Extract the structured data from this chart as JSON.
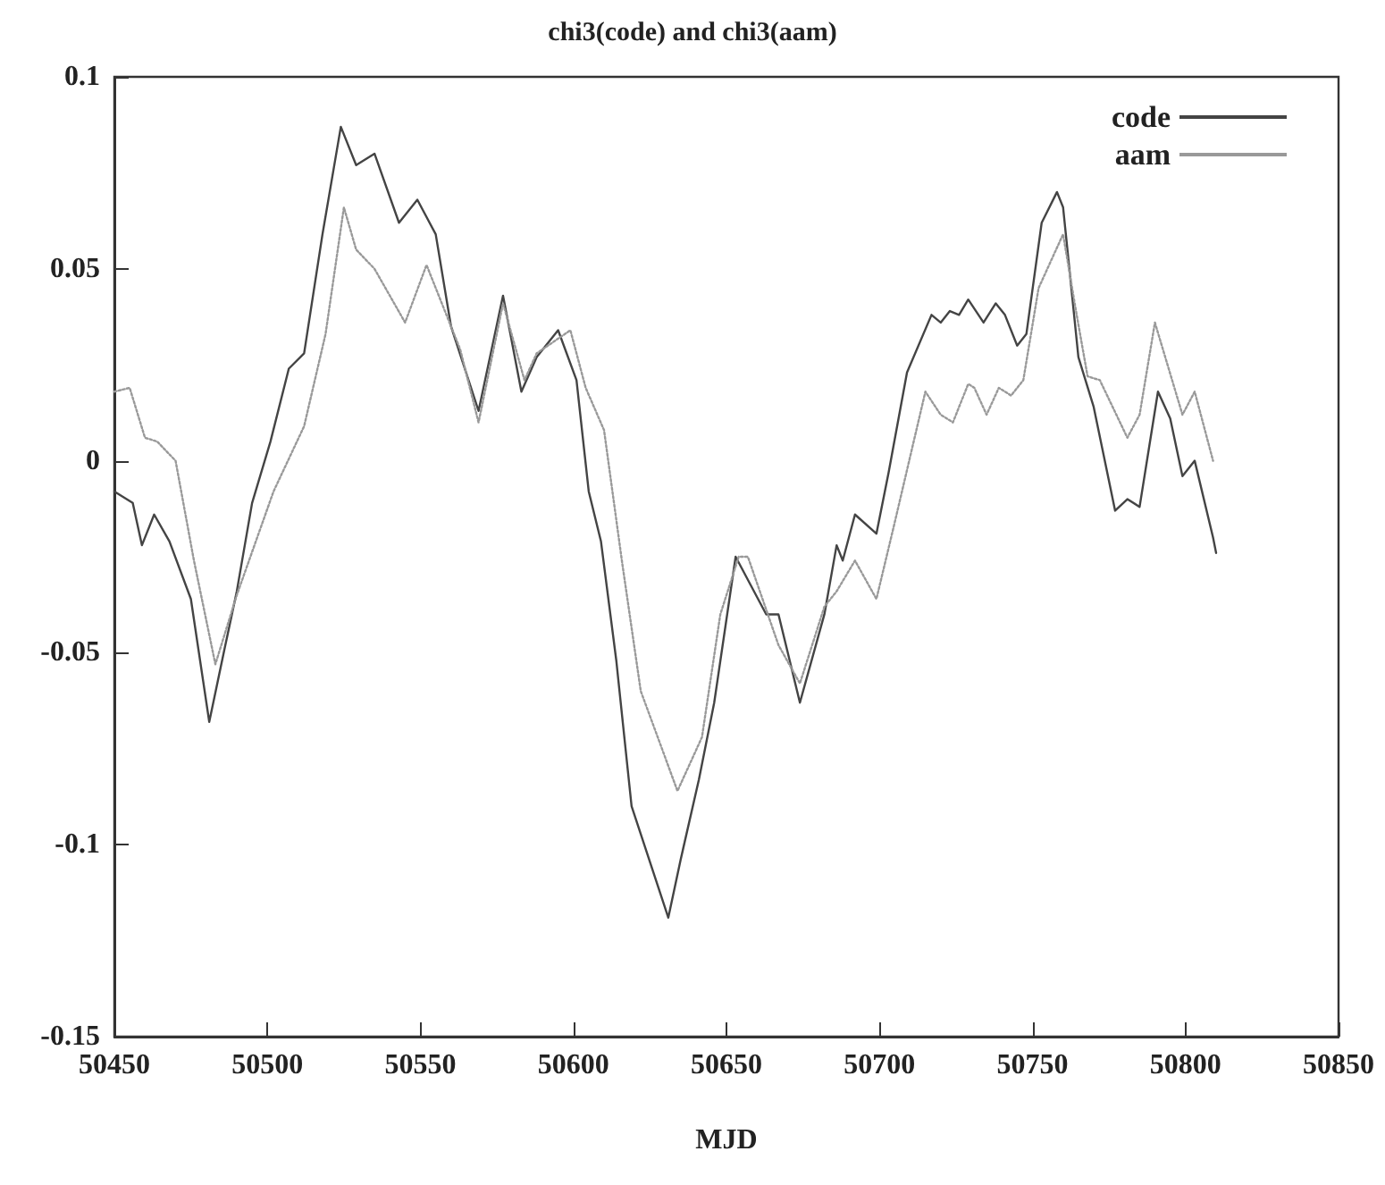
{
  "chart_data": {
    "type": "line",
    "title": "chi3(code) and chi3(aam)",
    "xlabel": "MJD",
    "xlim": [
      50450,
      50850
    ],
    "xticks": [
      50450,
      50500,
      50550,
      50600,
      50650,
      50700,
      50750,
      50800,
      50850
    ],
    "ylim": [
      -0.15,
      0.1
    ],
    "yticks": [
      -0.15,
      -0.1,
      -0.05,
      0,
      0.05,
      0.1
    ],
    "grid": false,
    "legend": "top right",
    "marker": "none",
    "series": [
      {
        "name": "code",
        "color": "#444444",
        "line_style": "solid",
        "x": [
          50450,
          50456,
          50459,
          50463,
          50468,
          50475,
          50481,
          50486,
          50490,
          50495,
          50501,
          50507,
          50512,
          50518,
          50524,
          50529,
          50535,
          50543,
          50549,
          50555,
          50560,
          50569,
          50577,
          50583,
          50588,
          50595,
          50601,
          50605,
          50609,
          50614,
          50619,
          50631,
          50635,
          50641,
          50646,
          50653,
          50663,
          50667,
          50674,
          50682,
          50686,
          50688,
          50692,
          50699,
          50703,
          50709,
          50717,
          50720,
          50723,
          50726,
          50729,
          50734,
          50738,
          50741,
          50745,
          50748,
          50753,
          50758,
          50760,
          50765,
          50770,
          50777,
          50781,
          50785,
          50791,
          50795,
          50799,
          50803,
          50809,
          50810
        ],
        "values": [
          -0.008,
          -0.011,
          -0.022,
          -0.014,
          -0.021,
          -0.036,
          -0.068,
          -0.049,
          -0.034,
          -0.011,
          0.005,
          0.024,
          0.028,
          0.059,
          0.087,
          0.077,
          0.08,
          0.062,
          0.068,
          0.059,
          0.035,
          0.013,
          0.043,
          0.018,
          0.027,
          0.034,
          0.021,
          -0.008,
          -0.021,
          -0.052,
          -0.09,
          -0.119,
          -0.104,
          -0.083,
          -0.063,
          -0.025,
          -0.04,
          -0.04,
          -0.063,
          -0.04,
          -0.022,
          -0.026,
          -0.014,
          -0.019,
          -0.003,
          0.023,
          0.038,
          0.036,
          0.039,
          0.038,
          0.042,
          0.036,
          0.041,
          0.038,
          0.03,
          0.033,
          0.062,
          0.07,
          0.066,
          0.027,
          0.014,
          -0.013,
          -0.01,
          -0.012,
          0.018,
          0.011,
          -0.004,
          0,
          -0.02,
          -0.024
        ]
      },
      {
        "name": "aam",
        "color": "#999999",
        "line_style": "dotted",
        "x": [
          50450,
          50455,
          50460,
          50464,
          50470,
          50476,
          50483,
          50490,
          50502,
          50512,
          50519,
          50525,
          50529,
          50535,
          50545,
          50552,
          50557,
          50563,
          50569,
          50577,
          50584,
          50588,
          50599,
          50604,
          50610,
          50616,
          50622,
          50634,
          50642,
          50648,
          50654,
          50657,
          50667,
          50674,
          50682,
          50686,
          50692,
          50699,
          50705,
          50715,
          50720,
          50724,
          50729,
          50731,
          50735,
          50739,
          50743,
          50747,
          50752,
          50760,
          50764,
          50768,
          50772,
          50781,
          50785,
          50790,
          50799,
          50803,
          50809
        ],
        "values": [
          0.018,
          0.019,
          0.006,
          0.005,
          0,
          -0.026,
          -0.053,
          -0.035,
          -0.008,
          0.009,
          0.033,
          0.066,
          0.055,
          0.05,
          0.036,
          0.051,
          0.041,
          0.029,
          0.01,
          0.041,
          0.021,
          0.028,
          0.034,
          0.019,
          0.008,
          -0.027,
          -0.06,
          -0.086,
          -0.072,
          -0.04,
          -0.025,
          -0.025,
          -0.048,
          -0.058,
          -0.038,
          -0.034,
          -0.026,
          -0.036,
          -0.016,
          0.018,
          0.012,
          0.01,
          0.02,
          0.019,
          0.012,
          0.019,
          0.017,
          0.021,
          0.045,
          0.059,
          0.04,
          0.022,
          0.021,
          0.006,
          0.012,
          0.036,
          0.012,
          0.018,
          0
        ]
      }
    ]
  }
}
